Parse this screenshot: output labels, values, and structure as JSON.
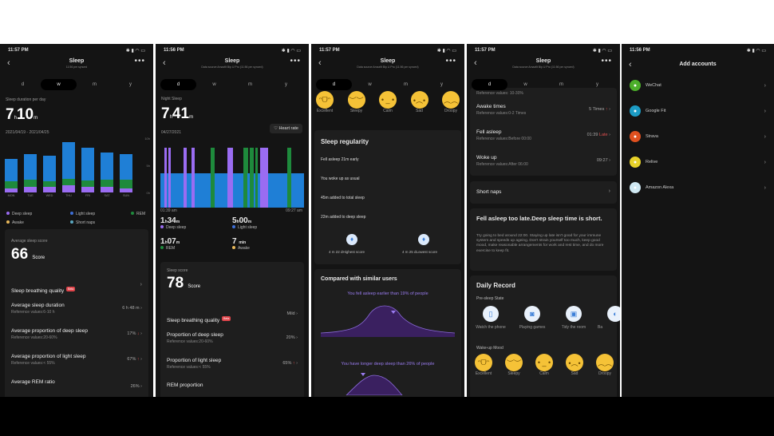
{
  "colors": {
    "deep": "#9a6cf2",
    "light": "#1f7fd6",
    "rem": "#1e8a3c",
    "awake": "#e8b85a",
    "short_naps": "#5aa7c0",
    "late": "#e05050",
    "accent": "#9a7cf0"
  },
  "panel1": {
    "time": "11:57 PM",
    "title": "Sleep",
    "subtitle": "11:56 pm synced",
    "back_icon": "chevron-left-icon",
    "more_icon": "more-dots-icon",
    "tabs": [
      "d",
      "w",
      "m",
      "y"
    ],
    "active_tab": "w",
    "duration_label": "Sleep duration per day",
    "hours": "7",
    "minutes": "10",
    "h_unit": "h",
    "m_unit": "m",
    "date_range": "2021/04/19 - 2021/04/25",
    "y_ticks": [
      "10h",
      "5h",
      "0h"
    ],
    "week_chart": {
      "categories": [
        "MON",
        "TUE",
        "WED",
        "THU",
        "FRI",
        "SAT",
        "SUN"
      ],
      "deep": [
        0.8,
        1.0,
        1.1,
        1.3,
        1.0,
        1.1,
        0.8
      ],
      "rem": [
        1.3,
        1.4,
        1.0,
        1.2,
        1.2,
        1.2,
        1.5
      ],
      "light": [
        4.1,
        4.6,
        4.7,
        6.8,
        6.0,
        5.1,
        4.8
      ]
    },
    "legend": [
      "Deep sleep",
      "Light sleep",
      "REM",
      "Awake",
      "Short naps"
    ],
    "score_label": "Average sleep score",
    "score": "66",
    "score_unit": "Score",
    "rows": [
      {
        "title": "Sleep breathing quality",
        "badge": "Beta",
        "value": ""
      },
      {
        "title": "Average sleep duration",
        "ref": "Reference values:6-10 h",
        "value": "6 h 48 m"
      },
      {
        "title": "Average proportion of deep sleep",
        "ref": "Reference values:20-60%",
        "value": "17%",
        "arrow": "↓"
      },
      {
        "title": "Average proportion of light sleep",
        "ref": "Reference values:< 55%",
        "value": "67%",
        "arrow": "↑"
      },
      {
        "title": "Average REM ratio",
        "value": "26%"
      }
    ]
  },
  "panel2": {
    "time": "11:56 PM",
    "title": "Sleep",
    "subtitle": "Data source:Amazfit Bip U Pro (11:56 pm synced)",
    "tabs": [
      "d",
      "w",
      "m",
      "y"
    ],
    "active_tab": "d",
    "label": "Night Sleep",
    "hours": "7",
    "minutes": "41",
    "date": "04/27/2021",
    "heart_rate_button": "Heart rate",
    "start": "01:39 am",
    "end": "09:27 am",
    "hypnogram": [
      [
        "light",
        6
      ],
      [
        "deep",
        4
      ],
      [
        "light",
        2
      ],
      [
        "deep",
        4
      ],
      [
        "light",
        20
      ],
      [
        "deep",
        5
      ],
      [
        "light",
        8
      ],
      [
        "deep",
        5
      ],
      [
        "light",
        25
      ],
      [
        "rem",
        7
      ],
      [
        "light",
        20
      ],
      [
        "deep",
        9
      ],
      [
        "light",
        16
      ],
      [
        "rem",
        7
      ],
      [
        "light",
        3
      ],
      [
        "rem",
        6
      ],
      [
        "light",
        3
      ],
      [
        "rem",
        4
      ],
      [
        "light",
        4
      ],
      [
        "deep",
        12
      ],
      [
        "light",
        30
      ],
      [
        "rem",
        7
      ],
      [
        "light",
        20
      ]
    ],
    "stats": [
      {
        "h": "1",
        "m": "34",
        "label": "Deep sleep",
        "key": "deep"
      },
      {
        "h": "5",
        "m": "00",
        "label": "Light sleep",
        "key": "light"
      },
      {
        "h": "1",
        "m": "07",
        "label": "REM",
        "key": "rem"
      },
      {
        "h": "",
        "m": "7",
        "label": "Awake",
        "key": "awake",
        "unit": "min"
      }
    ],
    "score_label": "Sleep score",
    "score": "78",
    "score_unit": "Score",
    "rows": [
      {
        "title": "Sleep breathing quality",
        "badge": "Beta",
        "value": "Mild"
      },
      {
        "title": "Proportion of deep sleep",
        "ref": "Reference values:20-60%",
        "value": "20%"
      },
      {
        "title": "Proportion of light sleep",
        "ref": "Reference values:< 55%",
        "value": "65%",
        "arrow": "↑"
      },
      {
        "title": "REM proportion"
      }
    ]
  },
  "panel3": {
    "time": "11:57 PM",
    "title": "Sleep",
    "subtitle": "Data source:Amazfit Bip U Pro (11:56 pm synced)",
    "tabs": [
      "d",
      "w",
      "m",
      "y"
    ],
    "active_tab": "d",
    "moods": [
      "Excellent",
      "Sleepy",
      "Calm",
      "Sad",
      "Droopy"
    ],
    "regularity_title": "Sleep regularity",
    "regularity": [
      "Fell asleep 21m early",
      "You woke up as usual",
      "45m added to total sleep",
      "22m added to deep sleep"
    ],
    "highest": "4 m 22 dHighest score",
    "lowest": "4 m 25 dLowest score",
    "compare_title": "Compared with similar users",
    "compare1": "You fell asleep earlier than 19% of people",
    "compare2": "You have longer deep sleep than 26% of people"
  },
  "panel4": {
    "time": "11:57 PM",
    "title": "Sleep",
    "subtitle": "Data source:Amazfit Bip U Pro (11:56 pm synced)",
    "tabs": [
      "d",
      "w",
      "m",
      "y"
    ],
    "active_tab": "d",
    "cut_text": "Reference values: 10-30%",
    "rows": [
      {
        "title": "Awake times",
        "ref": "Reference values:0-2 Times",
        "value": "5 Times",
        "arrow": "↑"
      },
      {
        "title": "Fell asleep",
        "ref": "Reference values:Before 00:00",
        "value": "01:39",
        "tag": "Late"
      },
      {
        "title": "Woke up",
        "ref": "Reference values:After 06:00",
        "value": "09:27"
      }
    ],
    "short_naps": "Short naps",
    "advice_title": "Fell asleep too late.Deep sleep time is short.",
    "advice_body": "Try going to bed around 22:00. Staying up late isn't good for your immune system and speeds up ageing. Don't strain yourself too much, keep good mood, make reasonable arrangements for work and rest time, and do more exercise to keep fit.",
    "daily_title": "Daily Record",
    "pre_sleep_label": "Pre-sleep State",
    "pre_sleep": [
      "Watch the phone",
      "Playing games",
      "Tidy the room",
      "Ba"
    ],
    "wake_label": "Wake-up Mood",
    "moods": [
      "Excellent",
      "Sleepy",
      "Calm",
      "Sad",
      "Droopy"
    ]
  },
  "panel5": {
    "time": "11:56 PM",
    "title": "Add accounts",
    "accounts": [
      {
        "name": "WeChat",
        "color": "#4caf2a",
        "icon": "wechat-icon"
      },
      {
        "name": "Google Fit",
        "color": "#1c9bc4",
        "icon": "google-fit-icon"
      },
      {
        "name": "Strava",
        "color": "#e0501f",
        "icon": "strava-icon"
      },
      {
        "name": "Relive",
        "color": "#e8d22a",
        "icon": "relive-icon"
      },
      {
        "name": "Amazon Alexa",
        "color": "#cfe8f2",
        "icon": "alexa-icon"
      }
    ]
  }
}
